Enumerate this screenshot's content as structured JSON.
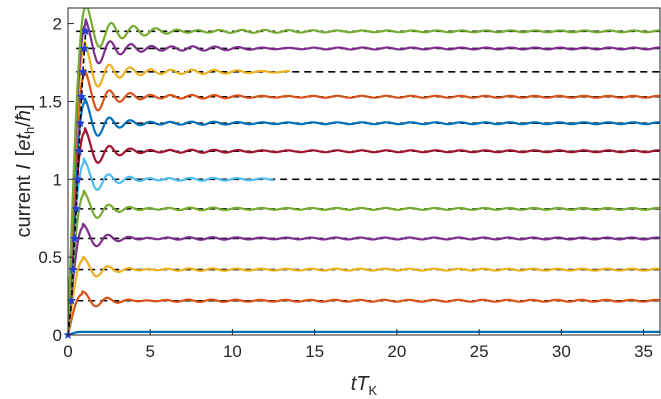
{
  "chart_data": {
    "type": "line",
    "xlabel": "tT_K",
    "xlabel_parts": {
      "main": "tT",
      "sub": "K"
    },
    "ylabel": "current I [et_h/ħ]",
    "ylabel_parts": {
      "prefix": "current ",
      "var": "I",
      "unit_open": "[",
      "unit_var": "e",
      "unit_t": "t",
      "unit_sub": "h",
      "unit_slash": "/",
      "unit_hbar": "ħ",
      "unit_close": "]"
    },
    "xlim": [
      0,
      36
    ],
    "ylim": [
      0,
      2.1
    ],
    "xticks": [
      0,
      5,
      10,
      15,
      20,
      25,
      30,
      35
    ],
    "yticks": [
      0,
      0.5,
      1,
      1.5,
      2
    ],
    "ytick_labels": [
      "0",
      "0.5",
      "1",
      "1.5",
      "2"
    ],
    "grid": false,
    "box": true,
    "reference_style": "black dashed horizontal lines at each steady-state value",
    "marker_style": "blue star markers on an initial rising curve",
    "series": [
      {
        "steady": 0.02,
        "peak": 0.02,
        "color": "#0072bd",
        "end_x": 36,
        "osc_amp": 0.0,
        "osc_freq": 1.0,
        "decay": 0.1,
        "rise_t": 0.8
      },
      {
        "steady": 0.22,
        "peak": 0.26,
        "color": "#d95319",
        "end_x": 36,
        "osc_amp": 0.035,
        "osc_freq": 1.05,
        "decay": 0.12,
        "rise_t": 0.85
      },
      {
        "steady": 0.42,
        "peak": 0.48,
        "color": "#edb120",
        "end_x": 36,
        "osc_amp": 0.04,
        "osc_freq": 1.05,
        "decay": 0.12,
        "rise_t": 0.9
      },
      {
        "steady": 0.62,
        "peak": 0.69,
        "color": "#7e2f8e",
        "end_x": 36,
        "osc_amp": 0.045,
        "osc_freq": 1.05,
        "decay": 0.12,
        "rise_t": 0.9
      },
      {
        "steady": 0.81,
        "peak": 0.9,
        "color": "#77ac30",
        "end_x": 36,
        "osc_amp": 0.05,
        "osc_freq": 1.05,
        "decay": 0.12,
        "rise_t": 0.95
      },
      {
        "steady": 1.0,
        "peak": 1.1,
        "color": "#4dbeee",
        "end_x": 12.5,
        "osc_amp": 0.06,
        "osc_freq": 1.05,
        "decay": 0.12,
        "rise_t": 0.95
      },
      {
        "steady": 1.18,
        "peak": 1.3,
        "color": "#a2142f",
        "end_x": 36,
        "osc_amp": 0.065,
        "osc_freq": 1.05,
        "decay": 0.12,
        "rise_t": 1.0
      },
      {
        "steady": 1.36,
        "peak": 1.49,
        "color": "#0072bd",
        "end_x": 36,
        "osc_amp": 0.07,
        "osc_freq": 1.05,
        "decay": 0.12,
        "rise_t": 1.0
      },
      {
        "steady": 1.53,
        "peak": 1.67,
        "color": "#d95319",
        "end_x": 36,
        "osc_amp": 0.075,
        "osc_freq": 1.05,
        "decay": 0.11,
        "rise_t": 1.0
      },
      {
        "steady": 1.69,
        "peak": 1.84,
        "color": "#edb120",
        "end_x": 13.5,
        "osc_amp": 0.08,
        "osc_freq": 1.05,
        "decay": 0.1,
        "rise_t": 1.0
      },
      {
        "steady": 1.84,
        "peak": 1.99,
        "color": "#7e2f8e",
        "end_x": 36,
        "osc_amp": 0.08,
        "osc_freq": 1.05,
        "decay": 0.1,
        "rise_t": 1.05
      },
      {
        "steady": 1.95,
        "peak": 2.1,
        "color": "#77ac30",
        "end_x": 36,
        "osc_amp": 0.085,
        "osc_freq": 1.0,
        "decay": 0.09,
        "rise_t": 1.05
      }
    ],
    "markers": [
      {
        "x": 0.0,
        "y": 0.0
      },
      {
        "x": 0.22,
        "y": 0.22
      },
      {
        "x": 0.3,
        "y": 0.42
      },
      {
        "x": 0.4,
        "y": 0.62
      },
      {
        "x": 0.5,
        "y": 0.81
      },
      {
        "x": 0.58,
        "y": 1.0
      },
      {
        "x": 0.66,
        "y": 1.18
      },
      {
        "x": 0.75,
        "y": 1.36
      },
      {
        "x": 0.83,
        "y": 1.53
      },
      {
        "x": 0.91,
        "y": 1.69
      },
      {
        "x": 1.0,
        "y": 1.84
      },
      {
        "x": 1.08,
        "y": 1.95
      }
    ],
    "marker_color": "#1f3fd6"
  }
}
